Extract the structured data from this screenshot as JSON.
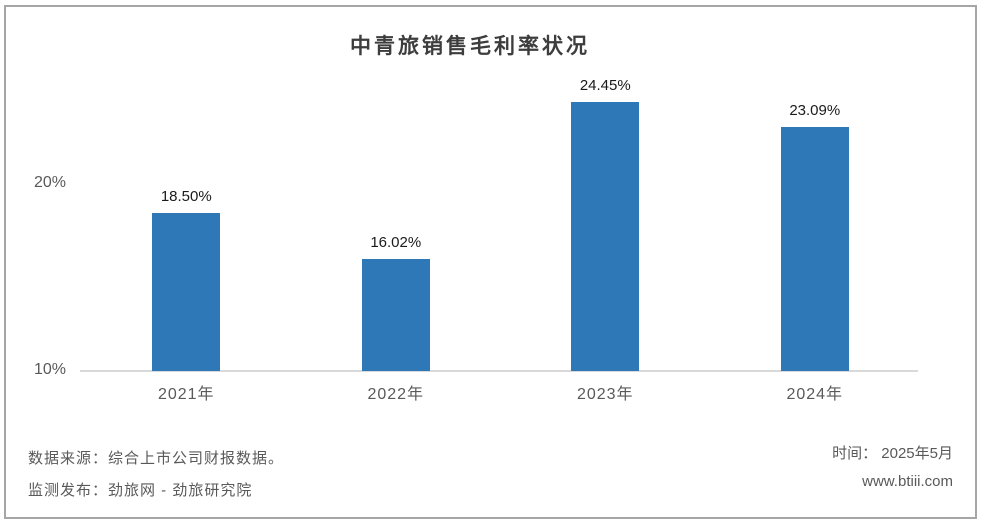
{
  "title": "中青旅销售毛利率状况",
  "chart_data": {
    "type": "bar",
    "title": "中青旅销售毛利率状况",
    "categories": [
      "2021年",
      "2022年",
      "2023年",
      "2024年"
    ],
    "values": [
      18.5,
      16.02,
      24.45,
      23.09
    ],
    "value_labels": [
      "18.50%",
      "16.02%",
      "24.45%",
      "23.09%"
    ],
    "xlabel": "",
    "ylabel": "",
    "ylim": [
      10,
      25
    ],
    "y_ticks": [
      {
        "label": "20%",
        "value": 20
      },
      {
        "label": "10%",
        "value": 10
      }
    ],
    "bar_color": "#2e78b8",
    "grid": false,
    "legend": false,
    "baseline_color": "#d9d9d9"
  },
  "footer": {
    "source": "数据来源：综合上市公司财报数据。",
    "publisher": "监测发布：劲旅网 - 劲旅研究院",
    "time": "时间： 2025年5月",
    "website": "www.btiii.com"
  }
}
